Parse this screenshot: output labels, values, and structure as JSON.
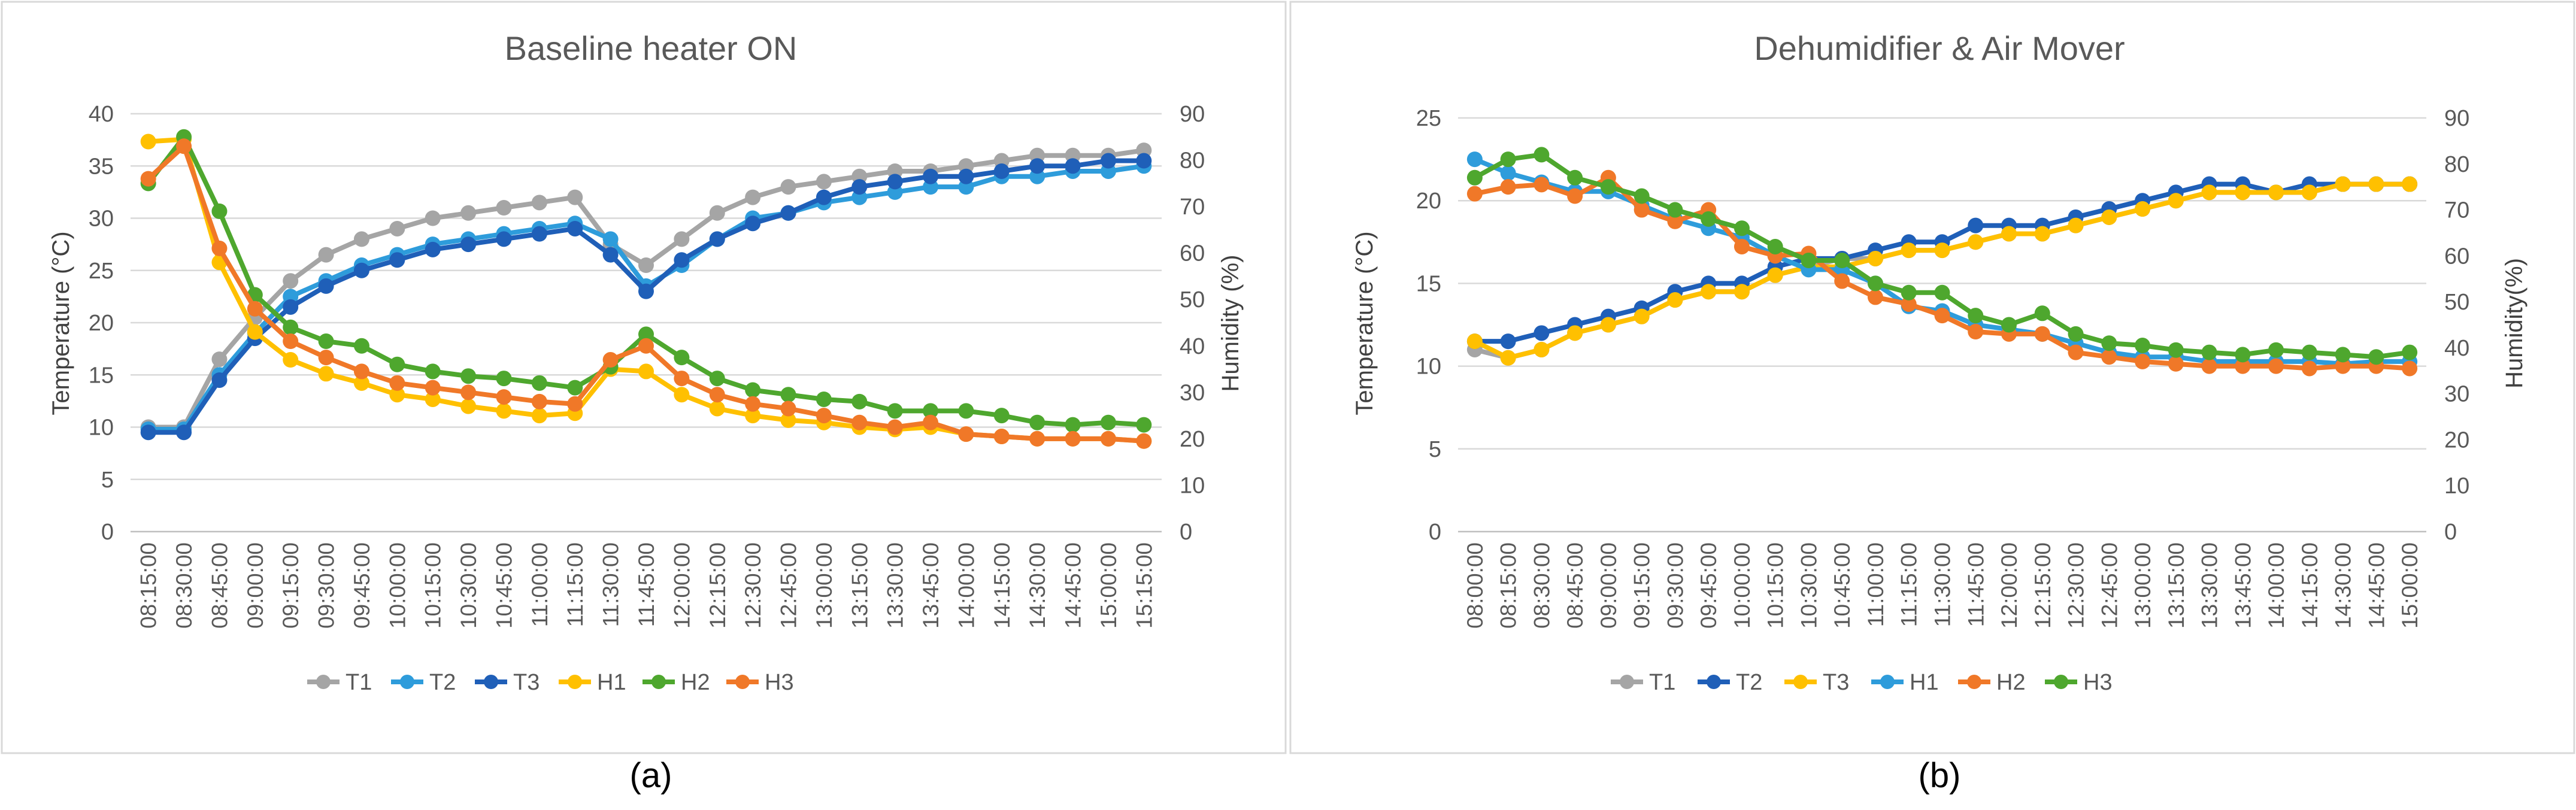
{
  "chart_data": [
    {
      "type": "line",
      "panel_label": "(a)",
      "title": "Baseline heater ON",
      "ylabel": "Temperature (°C)",
      "y2label": "Humidity (%)",
      "ylim": [
        0,
        40
      ],
      "yticks": [
        0,
        5,
        10,
        15,
        20,
        25,
        30,
        35,
        40
      ],
      "y2lim": [
        0,
        90
      ],
      "y2ticks": [
        0,
        10,
        20,
        30,
        40,
        50,
        60,
        70,
        80,
        90
      ],
      "legend_position": "bottom",
      "gridlines": true,
      "categories": [
        "08:15:00",
        "08:30:00",
        "08:45:00",
        "09:00:00",
        "09:15:00",
        "09:30:00",
        "09:45:00",
        "10:00:00",
        "10:15:00",
        "10:30:00",
        "10:45:00",
        "11:00:00",
        "11:15:00",
        "11:30:00",
        "11:45:00",
        "12:00:00",
        "12:15:00",
        "12:30:00",
        "12:45:00",
        "13:00:00",
        "13:15:00",
        "13:30:00",
        "13:45:00",
        "14:00:00",
        "14:15:00",
        "14:30:00",
        "14:45:00",
        "15:00:00",
        "15:15:00"
      ],
      "series": [
        {
          "name": "T1",
          "axis": "left",
          "color": "#A5A5A5",
          "values": [
            10,
            10,
            16.5,
            20.5,
            24,
            26.5,
            28,
            29,
            30,
            30.5,
            31,
            31.5,
            32,
            27.5,
            25.5,
            28,
            30.5,
            32,
            33,
            33.5,
            34,
            34.5,
            34.5,
            35,
            35.5,
            36,
            36,
            36,
            36.5
          ]
        },
        {
          "name": "T2",
          "axis": "left",
          "color": "#2E9CDB",
          "values": [
            9.8,
            9.8,
            15,
            19,
            22.5,
            24,
            25.5,
            26.5,
            27.5,
            28,
            28.5,
            29,
            29.5,
            28,
            23.5,
            25.5,
            28,
            30,
            30.5,
            31.5,
            32,
            32.5,
            33,
            33,
            34,
            34,
            34.5,
            34.5,
            35
          ]
        },
        {
          "name": "T3",
          "axis": "left",
          "color": "#1F5FB8",
          "values": [
            9.5,
            9.5,
            14.5,
            18.5,
            21.5,
            23.5,
            25,
            26,
            27,
            27.5,
            28,
            28.5,
            29,
            26.5,
            23,
            26,
            28,
            29.5,
            30.5,
            32,
            33,
            33.5,
            34,
            34,
            34.5,
            35,
            35,
            35.5,
            35.5
          ]
        },
        {
          "name": "H1",
          "axis": "right",
          "color": "#FFC000",
          "values": [
            84,
            84.5,
            58,
            43,
            37,
            34,
            32,
            29.5,
            28.5,
            27,
            26,
            25,
            25.5,
            35,
            34.5,
            29.5,
            26.5,
            25,
            24,
            23.5,
            22.5,
            22,
            22.5,
            21,
            20.5,
            20,
            20,
            20,
            19.5
          ]
        },
        {
          "name": "H2",
          "axis": "right",
          "color": "#4EA72E",
          "values": [
            75,
            85,
            69,
            51,
            44,
            41,
            40,
            36,
            34.5,
            33.5,
            33,
            32,
            31,
            35.5,
            42.5,
            37.5,
            33,
            30.5,
            29.5,
            28.5,
            28,
            26,
            26,
            26,
            25,
            23.5,
            23,
            23.5,
            23
          ]
        },
        {
          "name": "H3",
          "axis": "right",
          "color": "#F07828",
          "values": [
            76,
            83,
            61,
            48,
            41,
            37.5,
            34.5,
            32,
            31,
            30,
            29,
            28,
            27.5,
            37,
            40,
            33,
            29.5,
            27.5,
            26.5,
            25,
            23.5,
            22.5,
            23.5,
            21,
            20.5,
            20,
            20,
            20,
            19.5
          ]
        }
      ]
    },
    {
      "type": "line",
      "panel_label": "(b)",
      "title": "Dehumidifier & Air Mover",
      "ylabel": "Temperature (°C)",
      "y2label": "Humidity(%)",
      "ylim": [
        0,
        25
      ],
      "yticks": [
        0,
        5,
        10,
        15,
        20,
        25
      ],
      "y2lim": [
        0,
        90
      ],
      "y2ticks": [
        0,
        10,
        20,
        30,
        40,
        50,
        60,
        70,
        80,
        90
      ],
      "legend_position": "bottom",
      "gridlines": true,
      "categories": [
        "08:00:00",
        "08:15:00",
        "08:30:00",
        "08:45:00",
        "09:00:00",
        "09:15:00",
        "09:30:00",
        "09:45:00",
        "10:00:00",
        "10:15:00",
        "10:30:00",
        "10:45:00",
        "11:00:00",
        "11:15:00",
        "11:30:00",
        "11:45:00",
        "12:00:00",
        "12:15:00",
        "12:30:00",
        "12:45:00",
        "13:00:00",
        "13:15:00",
        "13:30:00",
        "13:45:00",
        "14:00:00",
        "14:15:00",
        "14:30:00",
        "14:45:00",
        "15:00:00"
      ],
      "series": [
        {
          "name": "T1",
          "axis": "left",
          "color": "#A5A5A5",
          "values": [
            11,
            10.5,
            11,
            12,
            12.5,
            13,
            14,
            14.5,
            14.5,
            15.5,
            16,
            16.5,
            16.5,
            17,
            17,
            17.5,
            18,
            18,
            18.5,
            19,
            19.5,
            20,
            20.5,
            20.5,
            20.5,
            20.5,
            21,
            21,
            21
          ]
        },
        {
          "name": "T2",
          "axis": "left",
          "color": "#1F5FB8",
          "values": [
            11.5,
            11.5,
            12,
            12.5,
            13,
            13.5,
            14.5,
            15,
            15,
            16,
            16.5,
            16.5,
            17,
            17.5,
            17.5,
            18.5,
            18.5,
            18.5,
            19,
            19.5,
            20,
            20.5,
            21,
            21,
            20.5,
            21,
            21,
            21,
            21
          ]
        },
        {
          "name": "T3",
          "axis": "left",
          "color": "#FFC000",
          "values": [
            11.5,
            10.5,
            11,
            12,
            12.5,
            13,
            14,
            14.5,
            14.5,
            15.5,
            16,
            16,
            16.5,
            17,
            17,
            17.5,
            18,
            18,
            18.5,
            19,
            19.5,
            20,
            20.5,
            20.5,
            20.5,
            20.5,
            21,
            21,
            21
          ]
        },
        {
          "name": "H1",
          "axis": "right",
          "color": "#2E9CDB",
          "values": [
            81,
            78,
            76,
            74,
            74,
            71,
            68,
            66,
            64,
            60,
            57,
            57,
            54,
            49,
            48,
            45,
            44,
            43,
            41,
            39,
            38,
            38,
            37,
            37,
            37,
            37,
            36.5,
            37,
            37
          ]
        },
        {
          "name": "H2",
          "axis": "right",
          "color": "#F07828",
          "values": [
            73.5,
            75,
            75.5,
            73,
            77,
            70,
            67.5,
            70,
            62,
            60,
            60.5,
            54.5,
            51,
            49.5,
            47,
            43.5,
            43,
            43,
            39,
            38,
            37,
            36.5,
            36,
            36,
            36,
            35.5,
            36,
            36,
            35.5
          ]
        },
        {
          "name": "H3",
          "axis": "right",
          "color": "#4EA72E",
          "values": [
            77,
            81,
            82,
            77,
            75,
            73,
            70,
            68,
            66,
            62,
            59,
            59,
            54,
            52,
            52,
            47,
            45,
            47.5,
            43,
            41,
            40.5,
            39.5,
            39,
            38.5,
            39.5,
            39,
            38.5,
            38,
            39
          ]
        }
      ]
    }
  ]
}
